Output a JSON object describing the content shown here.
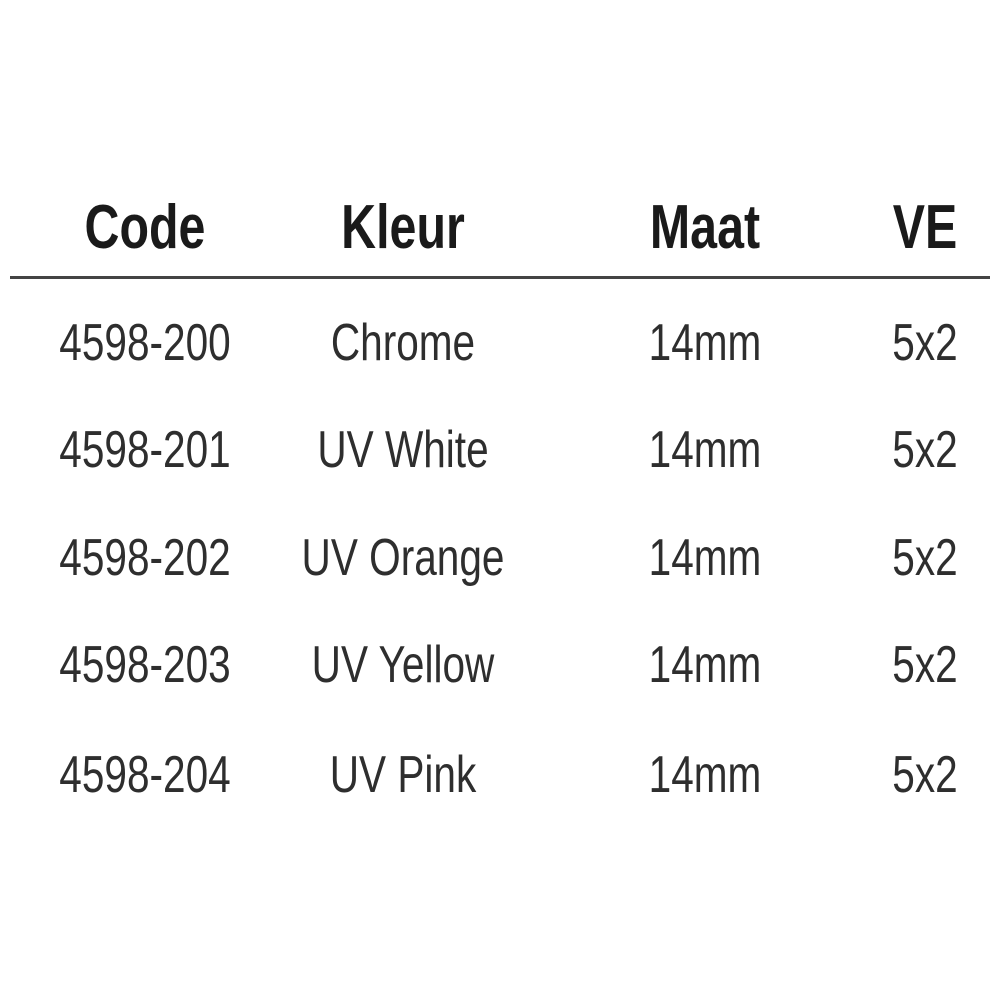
{
  "table": {
    "headers": [
      "Code",
      "Kleur",
      "Maat",
      "VE"
    ],
    "rows": [
      [
        "4598-200",
        "Chrome",
        "14mm",
        "5x2"
      ],
      [
        "4598-201",
        "UV White",
        "14mm",
        "5x2"
      ],
      [
        "4598-202",
        "UV Orange",
        "14mm",
        "5x2"
      ],
      [
        "4598-203",
        "UV Yellow",
        "14mm",
        "5x2"
      ],
      [
        "4598-204",
        "UV Pink",
        "14mm",
        "5x2"
      ]
    ]
  }
}
